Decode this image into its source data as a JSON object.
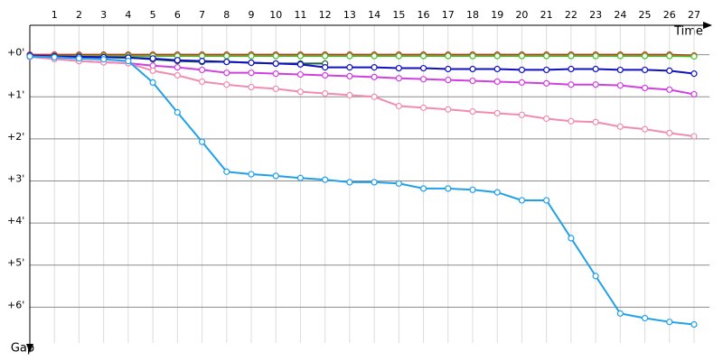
{
  "chart_data": {
    "type": "line",
    "x_label": "Time",
    "y_label": "Gap",
    "x": [
      0,
      1,
      2,
      3,
      4,
      5,
      6,
      7,
      8,
      9,
      10,
      11,
      12,
      13,
      14,
      15,
      16,
      17,
      18,
      19,
      20,
      21,
      22,
      23,
      24,
      25,
      26,
      27
    ],
    "xlim": [
      0,
      27
    ],
    "xticks": [
      1,
      2,
      3,
      4,
      5,
      6,
      7,
      8,
      9,
      10,
      11,
      12,
      13,
      14,
      15,
      16,
      17,
      18,
      19,
      20,
      21,
      22,
      23,
      24,
      25,
      26,
      27
    ],
    "ylim": [
      -0.7,
      6.85
    ],
    "yticks": [
      {
        "value": 0,
        "label": "+0'"
      },
      {
        "value": 1,
        "label": "+1'"
      },
      {
        "value": 2,
        "label": "+2'"
      },
      {
        "value": 3,
        "label": "+3'"
      },
      {
        "value": 4,
        "label": "+4'"
      },
      {
        "value": 5,
        "label": "+5'"
      },
      {
        "value": 6,
        "label": "+6'"
      }
    ],
    "grid": true,
    "series": [
      {
        "color": "#e02020",
        "values": [
          0,
          0,
          0,
          0,
          0,
          0,
          0,
          0,
          0,
          0,
          0,
          0,
          0,
          0,
          0,
          0,
          0,
          0,
          0,
          0,
          0,
          0,
          0,
          0,
          0,
          0,
          0,
          0.02
        ]
      },
      {
        "color": "#40c020",
        "values": [
          0.03,
          0.03,
          0.03,
          0.03,
          0.03,
          0.03,
          0.03,
          0.03,
          0.03,
          0.03,
          0.03,
          0.03,
          0.03,
          0.03,
          0.03,
          0.03,
          0.03,
          0.03,
          0.03,
          0.03,
          0.03,
          0.03,
          0.03,
          0.03,
          0.03,
          0.03,
          0.03,
          0.04
        ]
      },
      {
        "color": "#206040",
        "values": [
          0.02,
          0.04,
          0.05,
          0.06,
          0.07,
          0.11,
          0.15,
          0.17,
          0.17,
          0.19,
          0.21,
          0.21,
          0.21,
          null,
          null,
          null,
          null,
          null,
          null,
          null,
          null,
          null,
          null,
          null,
          null,
          null,
          null,
          null
        ]
      },
      {
        "color": "#1010c0",
        "values": [
          0.02,
          0.04,
          0.05,
          0.06,
          0.07,
          0.09,
          0.13,
          0.15,
          0.17,
          0.19,
          0.21,
          0.23,
          0.3,
          0.3,
          0.3,
          0.32,
          0.32,
          0.34,
          0.34,
          0.34,
          0.36,
          0.36,
          0.34,
          0.34,
          0.36,
          0.36,
          0.38,
          0.45
        ]
      },
      {
        "color": "#d040e0",
        "values": [
          0.05,
          0.1,
          0.15,
          0.18,
          0.2,
          0.26,
          0.3,
          0.36,
          0.43,
          0.43,
          0.45,
          0.47,
          0.49,
          0.51,
          0.53,
          0.56,
          0.58,
          0.6,
          0.62,
          0.64,
          0.66,
          0.68,
          0.71,
          0.71,
          0.73,
          0.79,
          0.83,
          0.94
        ]
      },
      {
        "color": "#f08cb0",
        "values": [
          0.05,
          0.1,
          0.15,
          0.18,
          0.2,
          0.38,
          0.49,
          0.64,
          0.71,
          0.77,
          0.81,
          0.88,
          0.92,
          0.96,
          1.0,
          1.22,
          1.26,
          1.3,
          1.35,
          1.39,
          1.43,
          1.52,
          1.58,
          1.6,
          1.71,
          1.77,
          1.86,
          1.94
        ]
      },
      {
        "color": "#20a0e8",
        "values": [
          0.04,
          0.06,
          0.09,
          0.11,
          0.15,
          0.66,
          1.37,
          2.07,
          2.78,
          2.84,
          2.88,
          2.93,
          2.97,
          3.03,
          3.03,
          3.06,
          3.18,
          3.18,
          3.21,
          3.27,
          3.46,
          3.46,
          4.36,
          5.26,
          6.15,
          6.26,
          6.35,
          6.41
        ]
      }
    ]
  }
}
